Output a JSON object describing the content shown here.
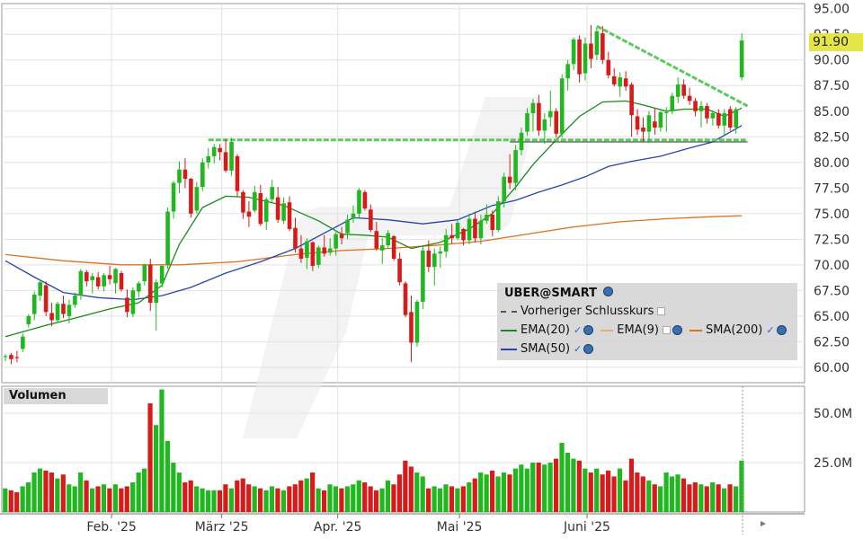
{
  "legend": {
    "title": "UBER@SMART",
    "prev_close": "Vorheriger Schlusskurs",
    "ema20": "EMA(20)",
    "ema9": "EMA(9)",
    "sma200": "SMA(200)",
    "sma50": "SMA(50)"
  },
  "volume_label": "Volumen",
  "last_price": "91.90",
  "colors": {
    "up": "#1fb81f",
    "down": "#d91a1a",
    "ema20": "#1a8a1a",
    "sma50": "#2446b0",
    "sma200": "#e0701a",
    "trendline": "#5dc85d"
  },
  "chart_data": {
    "type": "candlestick",
    "price_axis": {
      "ylim": [
        58.5,
        95.5
      ],
      "ticks": [
        "95.00",
        "92.50",
        "90.00",
        "87.50",
        "85.00",
        "82.50",
        "80.00",
        "77.50",
        "75.00",
        "72.50",
        "70.00",
        "67.50",
        "65.00",
        "62.50",
        "60.00"
      ]
    },
    "volume_axis": {
      "ylim": [
        0,
        60
      ],
      "ticks": [
        "50.0M",
        "25.0M"
      ]
    },
    "x_axis": {
      "labels": [
        "Feb. '25",
        "März '25",
        "Apr. '25",
        "Mai '25",
        "Juni '25"
      ],
      "label_index": [
        18,
        37,
        57,
        78,
        100
      ]
    },
    "candles": [
      [
        61.0,
        61.3,
        60.6,
        61.1,
        12
      ],
      [
        61.2,
        61.4,
        60.3,
        60.8,
        11
      ],
      [
        61.0,
        61.6,
        60.5,
        60.9,
        10
      ],
      [
        61.8,
        63.3,
        61.5,
        63.0,
        13
      ],
      [
        64.2,
        65.2,
        63.9,
        65.0,
        15
      ],
      [
        65.2,
        67.4,
        64.6,
        67.1,
        20
      ],
      [
        67.0,
        68.6,
        66.5,
        68.3,
        22
      ],
      [
        68.0,
        68.4,
        65.0,
        65.4,
        21
      ],
      [
        65.3,
        66.3,
        64.0,
        64.6,
        20
      ],
      [
        64.6,
        66.4,
        64.3,
        66.2,
        17
      ],
      [
        66.2,
        67.0,
        64.8,
        65.2,
        19
      ],
      [
        65.0,
        66.6,
        64.3,
        66.1,
        14
      ],
      [
        66.1,
        67.3,
        65.8,
        67.0,
        13
      ],
      [
        67.0,
        69.6,
        66.6,
        69.4,
        20
      ],
      [
        69.3,
        69.5,
        67.9,
        68.4,
        16
      ],
      [
        68.5,
        69.2,
        67.2,
        68.9,
        12
      ],
      [
        68.8,
        69.3,
        67.6,
        67.9,
        13
      ],
      [
        67.9,
        69.2,
        67.4,
        69.0,
        14
      ],
      [
        69.0,
        69.9,
        68.1,
        68.6,
        12
      ],
      [
        68.2,
        69.7,
        67.2,
        69.6,
        14
      ],
      [
        69.2,
        69.4,
        67.4,
        67.6,
        12
      ],
      [
        66.8,
        67.6,
        64.9,
        65.4,
        13
      ],
      [
        65.2,
        67.8,
        64.9,
        67.5,
        15
      ],
      [
        67.4,
        68.4,
        66.8,
        68.2,
        20
      ],
      [
        68.4,
        70.1,
        68.0,
        70.0,
        22
      ],
      [
        70.0,
        70.6,
        65.5,
        66.3,
        55
      ],
      [
        66.3,
        68.6,
        63.6,
        68.3,
        44
      ],
      [
        68.2,
        70.0,
        67.8,
        69.9,
        62
      ],
      [
        70.0,
        75.6,
        69.6,
        75.2,
        36
      ],
      [
        75.2,
        78.2,
        74.5,
        78.0,
        25
      ],
      [
        78.0,
        80.1,
        77.0,
        79.3,
        20
      ],
      [
        79.3,
        80.4,
        77.5,
        78.4,
        15
      ],
      [
        78.4,
        78.5,
        74.6,
        75.0,
        16
      ],
      [
        75.3,
        78.1,
        75.0,
        77.6,
        13
      ],
      [
        77.6,
        80.4,
        77.2,
        80.0,
        12
      ],
      [
        80.0,
        81.4,
        79.4,
        80.6,
        11
      ],
      [
        80.6,
        81.8,
        79.9,
        81.5,
        11
      ],
      [
        81.4,
        81.8,
        80.2,
        81.0,
        11
      ],
      [
        81.0,
        82.3,
        79.0,
        79.2,
        14
      ],
      [
        79.2,
        82.4,
        78.7,
        82.0,
        12
      ],
      [
        80.6,
        80.8,
        76.7,
        77.2,
        16
      ],
      [
        77.1,
        77.3,
        74.5,
        75.1,
        17
      ],
      [
        75.2,
        76.2,
        73.7,
        74.7,
        14
      ],
      [
        75.3,
        77.7,
        75.1,
        77.1,
        13
      ],
      [
        77.0,
        77.8,
        73.8,
        74.0,
        12
      ],
      [
        74.2,
        76.6,
        73.4,
        76.4,
        11
      ],
      [
        76.4,
        78.3,
        76.1,
        77.6,
        13
      ],
      [
        76.6,
        77.6,
        74.1,
        74.4,
        12
      ],
      [
        74.3,
        76.6,
        74.0,
        76.0,
        11
      ],
      [
        76.1,
        76.7,
        73.3,
        73.5,
        13
      ],
      [
        73.6,
        74.6,
        71.2,
        71.6,
        14
      ],
      [
        71.6,
        72.9,
        70.2,
        70.6,
        16
      ],
      [
        70.7,
        72.6,
        69.6,
        72.3,
        17
      ],
      [
        72.2,
        72.3,
        69.4,
        69.9,
        20
      ],
      [
        70.0,
        71.9,
        69.7,
        71.7,
        12
      ],
      [
        71.7,
        72.9,
        70.8,
        71.1,
        11
      ],
      [
        71.2,
        72.6,
        70.9,
        71.6,
        14
      ],
      [
        71.6,
        73.2,
        70.9,
        73.0,
        13
      ],
      [
        73.0,
        73.7,
        72.0,
        72.6,
        12
      ],
      [
        73.1,
        74.9,
        72.5,
        74.4,
        13
      ],
      [
        74.5,
        75.8,
        74.1,
        75.0,
        14
      ],
      [
        75.0,
        77.5,
        74.6,
        77.3,
        16
      ],
      [
        77.1,
        77.3,
        75.3,
        75.5,
        15
      ],
      [
        75.4,
        75.9,
        73.2,
        73.4,
        13
      ],
      [
        73.3,
        74.2,
        71.4,
        71.6,
        11
      ],
      [
        71.4,
        72.6,
        70.1,
        71.9,
        12
      ],
      [
        71.9,
        73.4,
        71.6,
        73.1,
        16
      ],
      [
        72.8,
        72.9,
        70.4,
        70.6,
        14
      ],
      [
        70.6,
        71.2,
        68.0,
        68.3,
        19
      ],
      [
        68.2,
        68.4,
        64.9,
        65.1,
        26
      ],
      [
        65.4,
        67.0,
        60.5,
        62.4,
        23
      ],
      [
        62.4,
        66.6,
        62.0,
        66.4,
        20
      ],
      [
        66.4,
        71.8,
        65.7,
        71.4,
        18
      ],
      [
        71.4,
        72.4,
        69.3,
        69.8,
        12
      ],
      [
        69.8,
        71.6,
        68.0,
        71.1,
        13
      ],
      [
        71.1,
        71.8,
        69.7,
        71.3,
        12
      ],
      [
        71.3,
        73.5,
        70.7,
        72.9,
        14
      ],
      [
        72.9,
        74.0,
        72.1,
        72.6,
        13
      ],
      [
        72.6,
        74.4,
        72.4,
        74.1,
        12
      ],
      [
        73.5,
        73.6,
        71.9,
        72.4,
        13
      ],
      [
        72.4,
        75.0,
        72.0,
        74.5,
        15
      ],
      [
        74.5,
        75.2,
        72.2,
        72.6,
        17
      ],
      [
        72.6,
        74.9,
        72.0,
        74.3,
        20
      ],
      [
        74.3,
        75.9,
        74.0,
        74.9,
        19
      ],
      [
        74.9,
        75.3,
        72.8,
        73.4,
        21
      ],
      [
        73.4,
        76.7,
        73.2,
        76.2,
        18
      ],
      [
        76.2,
        79.0,
        75.6,
        78.6,
        20
      ],
      [
        78.6,
        80.8,
        77.4,
        78.0,
        19
      ],
      [
        78.0,
        81.7,
        77.3,
        81.2,
        22
      ],
      [
        81.2,
        83.4,
        80.7,
        82.9,
        24
      ],
      [
        83.0,
        85.3,
        82.6,
        84.8,
        22
      ],
      [
        84.8,
        86.2,
        83.0,
        85.8,
        25
      ],
      [
        85.8,
        86.6,
        82.6,
        83.1,
        25
      ],
      [
        83.1,
        84.8,
        81.8,
        84.2,
        24
      ],
      [
        84.4,
        87.0,
        83.5,
        85.0,
        25
      ],
      [
        85.0,
        85.3,
        82.4,
        82.8,
        27
      ],
      [
        82.8,
        88.6,
        82.4,
        88.2,
        35
      ],
      [
        88.2,
        90.0,
        87.0,
        89.6,
        30
      ],
      [
        89.6,
        92.2,
        89.0,
        92.0,
        27
      ],
      [
        92.0,
        92.4,
        87.8,
        88.6,
        26
      ],
      [
        88.7,
        92.2,
        88.0,
        91.6,
        22
      ],
      [
        91.6,
        93.4,
        89.2,
        90.1,
        20
      ],
      [
        90.5,
        93.2,
        90.0,
        92.8,
        22
      ],
      [
        92.6,
        93.3,
        89.6,
        90.0,
        19
      ],
      [
        90.0,
        90.8,
        88.2,
        88.5,
        21
      ],
      [
        88.4,
        89.2,
        87.4,
        87.6,
        18
      ],
      [
        87.4,
        88.8,
        86.4,
        88.3,
        22
      ],
      [
        88.2,
        88.9,
        87.0,
        87.4,
        16
      ],
      [
        87.6,
        87.8,
        82.5,
        84.6,
        27
      ],
      [
        84.5,
        85.2,
        82.7,
        83.2,
        20
      ],
      [
        83.4,
        84.4,
        82.0,
        83.0,
        18
      ],
      [
        83.0,
        85.0,
        81.9,
        84.6,
        16
      ],
      [
        84.0,
        85.3,
        82.7,
        83.4,
        14
      ],
      [
        83.4,
        85.0,
        83.0,
        84.9,
        13
      ],
      [
        84.9,
        85.4,
        83.0,
        84.9,
        20
      ],
      [
        85.0,
        86.8,
        84.7,
        86.5,
        18
      ],
      [
        86.4,
        88.3,
        85.8,
        87.6,
        19
      ],
      [
        87.6,
        88.1,
        86.2,
        86.5,
        17
      ],
      [
        86.5,
        87.3,
        85.6,
        86.0,
        14
      ],
      [
        86.0,
        86.3,
        84.5,
        85.0,
        15
      ],
      [
        85.0,
        86.0,
        83.4,
        85.5,
        14
      ],
      [
        85.5,
        85.8,
        83.8,
        84.3,
        13
      ],
      [
        84.3,
        85.1,
        83.6,
        84.8,
        15
      ],
      [
        84.8,
        85.2,
        83.3,
        83.6,
        14
      ],
      [
        83.6,
        85.2,
        82.6,
        84.8,
        12
      ],
      [
        85.2,
        85.5,
        83.1,
        83.4,
        14
      ],
      [
        83.4,
        85.4,
        82.8,
        85.2,
        13
      ],
      [
        88.3,
        92.6,
        88.0,
        91.9,
        26
      ]
    ],
    "ema20": [
      [
        0,
        63.0
      ],
      [
        7,
        64.1
      ],
      [
        12,
        64.8
      ],
      [
        18,
        65.7
      ],
      [
        23,
        66.3
      ],
      [
        27,
        68.0
      ],
      [
        30,
        72.0
      ],
      [
        34,
        75.6
      ],
      [
        38,
        76.7
      ],
      [
        42,
        76.6
      ],
      [
        48,
        75.8
      ],
      [
        54,
        74.3
      ],
      [
        58,
        73.0
      ],
      [
        62,
        72.9
      ],
      [
        66,
        72.7
      ],
      [
        70,
        71.6
      ],
      [
        75,
        72.2
      ],
      [
        80,
        73.5
      ],
      [
        84,
        75.0
      ],
      [
        88,
        77.6
      ],
      [
        91,
        79.8
      ],
      [
        95,
        82.2
      ],
      [
        99,
        84.5
      ],
      [
        103,
        85.9
      ],
      [
        107,
        86.0
      ],
      [
        110,
        85.6
      ],
      [
        114,
        85.0
      ],
      [
        117,
        85.2
      ],
      [
        121,
        85.2
      ],
      [
        124,
        84.5
      ],
      [
        127,
        85.3
      ]
    ],
    "sma50": [
      [
        0,
        70.4
      ],
      [
        5,
        68.8
      ],
      [
        10,
        67.3
      ],
      [
        16,
        66.8
      ],
      [
        22,
        66.6
      ],
      [
        27,
        67.0
      ],
      [
        32,
        67.8
      ],
      [
        38,
        69.2
      ],
      [
        44,
        70.3
      ],
      [
        50,
        71.6
      ],
      [
        56,
        73.4
      ],
      [
        60,
        74.6
      ],
      [
        66,
        74.4
      ],
      [
        72,
        74.0
      ],
      [
        78,
        74.4
      ],
      [
        84,
        75.8
      ],
      [
        88,
        76.3
      ],
      [
        92,
        77.1
      ],
      [
        96,
        77.8
      ],
      [
        100,
        78.6
      ],
      [
        104,
        79.6
      ],
      [
        108,
        80.1
      ],
      [
        113,
        80.6
      ],
      [
        118,
        81.4
      ],
      [
        122,
        82.0
      ],
      [
        127,
        83.6
      ]
    ],
    "sma200": [
      [
        0,
        71.0
      ],
      [
        10,
        70.4
      ],
      [
        20,
        70.0
      ],
      [
        30,
        70.0
      ],
      [
        40,
        70.3
      ],
      [
        50,
        71.0
      ],
      [
        58,
        71.4
      ],
      [
        66,
        71.6
      ],
      [
        74,
        71.9
      ],
      [
        82,
        72.3
      ],
      [
        90,
        73.0
      ],
      [
        98,
        73.7
      ],
      [
        106,
        74.2
      ],
      [
        114,
        74.5
      ],
      [
        122,
        74.7
      ],
      [
        127,
        74.8
      ]
    ],
    "horizontal_line": {
      "value": 82.2,
      "from_index": 35,
      "to_index": 128
    },
    "support_line": {
      "value": 82.0,
      "from_index": 87,
      "to_index": 128
    },
    "trendline": {
      "from": [
        102,
        93.3
      ],
      "to": [
        128,
        85.5
      ]
    }
  }
}
